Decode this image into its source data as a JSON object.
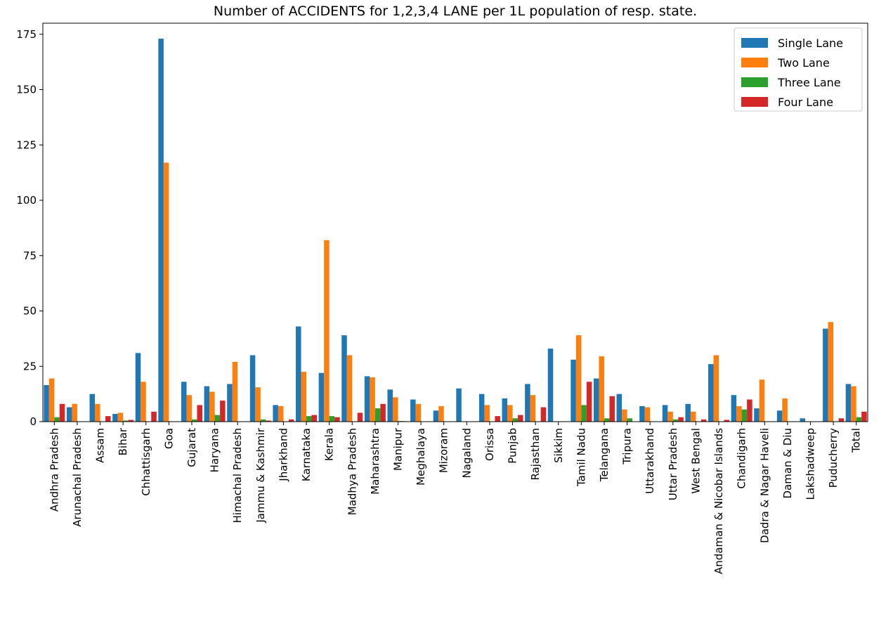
{
  "chart_data": {
    "type": "bar",
    "title": "Number of ACCIDENTS for 1,2,3,4 LANE per 1L population of resp. state.",
    "xlabel": "",
    "ylabel": "",
    "ylim": [
      0,
      180
    ],
    "yticks": [
      0,
      25,
      50,
      75,
      100,
      125,
      150,
      175
    ],
    "grid": false,
    "legend_position": "top-right",
    "categories": [
      "Andhra Pradesh",
      "Arunachal Pradesh",
      "Assam",
      "Bihar",
      "Chhattisgarh",
      "Goa",
      "Gujarat",
      "Haryana",
      "Himachal Pradesh",
      "Jammu & Kashmir",
      "Jharkhand",
      "Karnataka",
      "Kerala",
      "Madhya Pradesh",
      "Maharashtra",
      "Manipur",
      "Meghalaya",
      "Mizoram",
      "Nagaland",
      "Orissa",
      "Punjab",
      "Rajasthan",
      "Sikkim",
      "Tamil Nadu",
      "Telangana",
      "Tripura",
      "Uttarakhand",
      "Uttar Pradesh",
      "West Bengal",
      "Andaman & Nicobar Islands",
      "Chandigarh",
      "Dadra & Nagar Haveli",
      "Daman & Diu",
      "Lakshadweep",
      "Puducherry",
      "Total"
    ],
    "series": [
      {
        "name": "Single Lane",
        "color": "#1f77b4",
        "values": [
          16.5,
          6.5,
          12.5,
          3.5,
          31,
          173,
          18,
          16,
          17,
          30,
          7.5,
          43,
          22,
          39,
          20.5,
          14.5,
          10,
          5,
          15,
          12.5,
          10.5,
          17,
          33,
          28,
          19.5,
          12.5,
          7,
          7.5,
          8,
          26,
          12,
          6,
          5,
          1.5,
          42,
          17
        ]
      },
      {
        "name": "Two Lane",
        "color": "#ff7f0e",
        "values": [
          19.5,
          8,
          8,
          4,
          18,
          117,
          12,
          13.5,
          27,
          15.5,
          7,
          22.5,
          82,
          30,
          20,
          11,
          8,
          7,
          0,
          7.5,
          7.5,
          12,
          0,
          39,
          29.5,
          5.5,
          6.5,
          4.5,
          4.5,
          30,
          7,
          19,
          10.5,
          0,
          45,
          16
        ]
      },
      {
        "name": "Three Lane",
        "color": "#2ca02c",
        "values": [
          2,
          0,
          0,
          0.5,
          0,
          0,
          1,
          3,
          0,
          1,
          0,
          2.5,
          2.5,
          0,
          6,
          0.3,
          0,
          0,
          0,
          0,
          1.5,
          0,
          0,
          7.5,
          1.5,
          1.5,
          0,
          1,
          0,
          0,
          5.5,
          0,
          0,
          0,
          0,
          2
        ]
      },
      {
        "name": "Four Lane",
        "color": "#d62728",
        "values": [
          8,
          0,
          2.5,
          0.8,
          4.5,
          0,
          7.5,
          9.5,
          0,
          0.5,
          1,
          3,
          2,
          4,
          8,
          0.2,
          0,
          0,
          0,
          2.5,
          3,
          6.5,
          0,
          18,
          11.5,
          0,
          0,
          2,
          1,
          0.8,
          10,
          0,
          0,
          0,
          1.5,
          4.5
        ]
      }
    ]
  }
}
